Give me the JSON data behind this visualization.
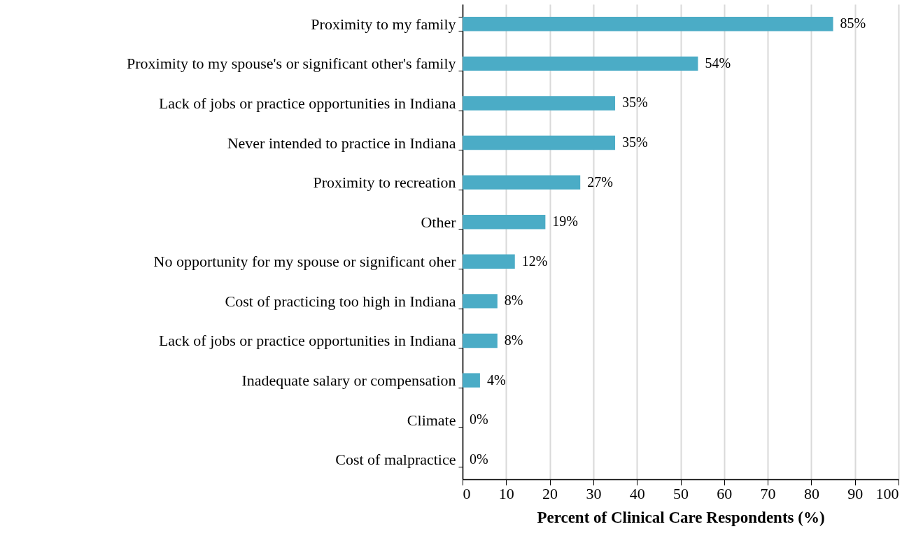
{
  "chart_data": {
    "type": "bar",
    "orientation": "horizontal",
    "xlabel": "Percent of Clinical Care Respondents (%)",
    "categories": [
      "Proximity to my family",
      "Proximity to my spouse's or significant other's family",
      "Lack of jobs or practice opportunities in Indiana",
      "Never intended to practice in Indiana",
      "Proximity to recreation",
      "Other",
      "No opportunity for my spouse or significant oher",
      "Cost of practicing too high in Indiana",
      "Lack of jobs or practice opportunities in Indiana",
      "Inadequate salary or compensation",
      "Climate",
      "Cost of malpractice"
    ],
    "values": [
      85,
      54,
      35,
      35,
      27,
      19,
      12,
      8,
      8,
      4,
      0,
      0
    ],
    "value_labels": [
      "85%",
      "54%",
      "35%",
      "35%",
      "27%",
      "19%",
      "12%",
      "8%",
      "8%",
      "4%",
      "0%",
      "0%"
    ],
    "color": "#4bacc6",
    "xlim": [
      0,
      100
    ],
    "xticks": [
      0,
      10,
      20,
      30,
      40,
      50,
      60,
      70,
      80,
      90,
      100
    ],
    "grid": "x"
  }
}
